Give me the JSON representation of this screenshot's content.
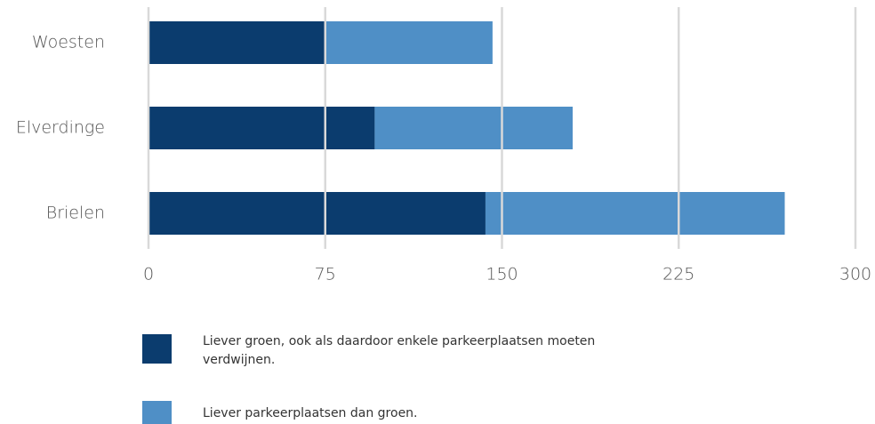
{
  "chart_data": {
    "type": "stacked_barh",
    "categories": [
      "Woesten",
      "Elverdinge",
      "Brielen"
    ],
    "series": [
      {
        "name": "Liever groen, ook als daardoor enkele parkeerplaatsen moeten verdwijnen.",
        "color": "#0b3c6e",
        "values": [
          75,
          96,
          143
        ]
      },
      {
        "name": "Liever parkeerplaatsen dan groen.",
        "color": "#4f8fc6",
        "values": [
          71,
          84,
          127
        ]
      }
    ],
    "xlim": [
      0,
      300
    ],
    "xticks": [
      0,
      75,
      150,
      225,
      300
    ],
    "grid": true
  }
}
